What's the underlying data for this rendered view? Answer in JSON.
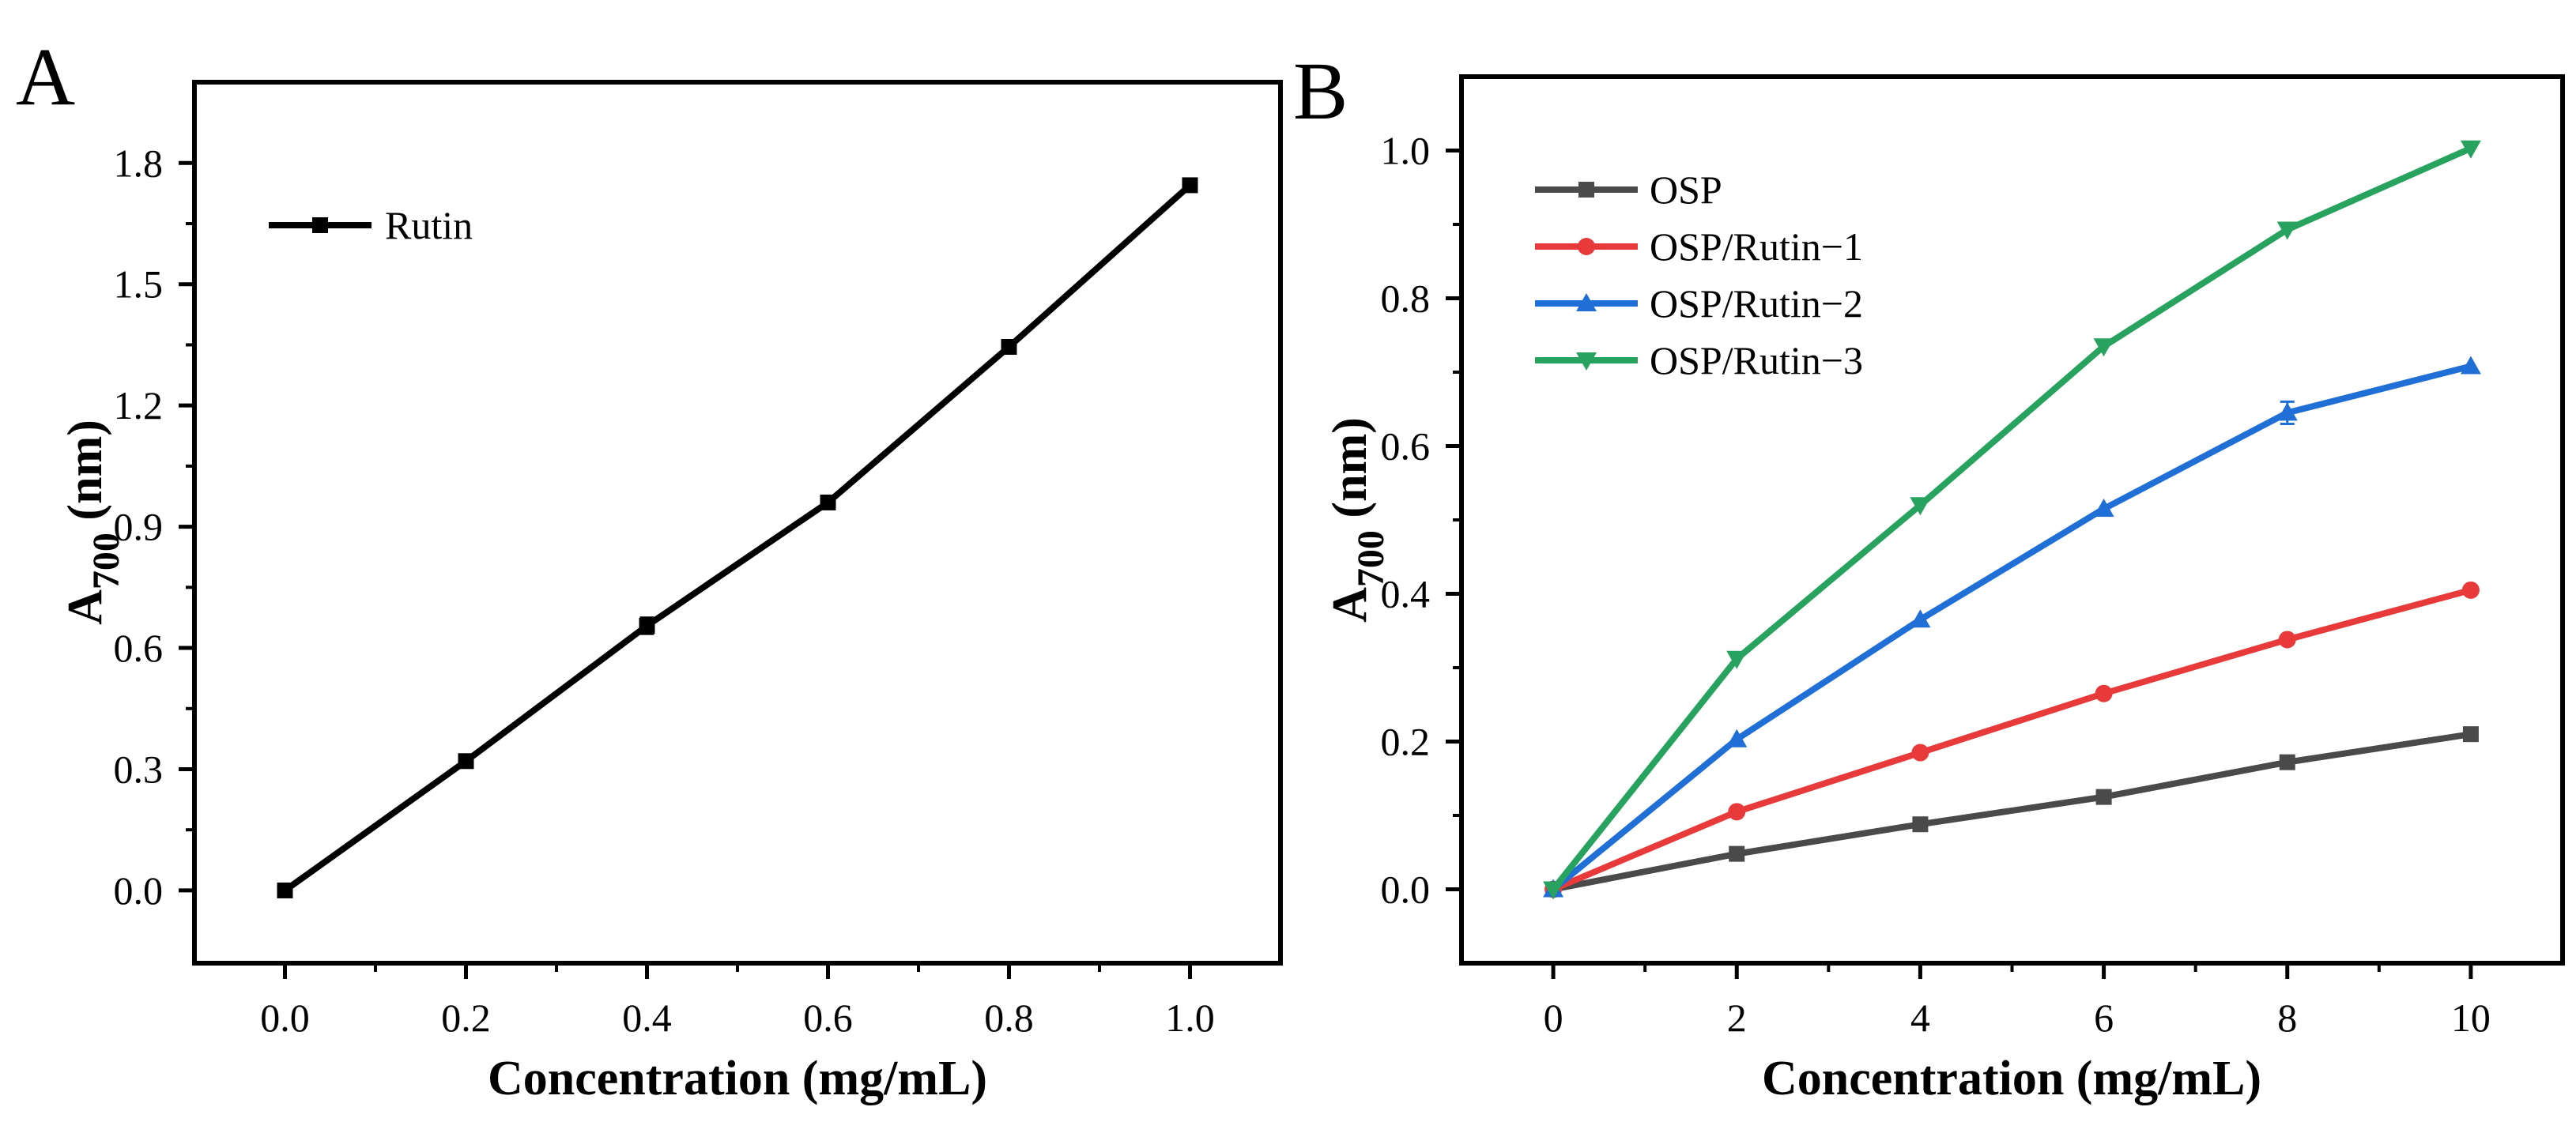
{
  "figure": {
    "panels": [
      {
        "letter": "A",
        "chart_data": {
          "type": "line",
          "xlabel": "Concentration (mg/mL)",
          "ylabel_main": "A",
          "ylabel_sub": "700",
          "ylabel_unit": " (nm)",
          "xlim": [
            -0.1,
            1.1
          ],
          "ylim": [
            -0.18,
            2.0
          ],
          "x_ticks": [
            0.0,
            0.2,
            0.4,
            0.6,
            0.8,
            1.0
          ],
          "x_tick_labels": [
            "0.0",
            "0.2",
            "0.4",
            "0.6",
            "0.8",
            "1.0"
          ],
          "y_ticks": [
            0.0,
            0.3,
            0.6,
            0.9,
            1.2,
            1.5,
            1.8
          ],
          "y_tick_labels": [
            "0.0",
            "0.3",
            "0.6",
            "0.9",
            "1.2",
            "1.5",
            "1.8"
          ],
          "legend_position": "top-left",
          "series": [
            {
              "name": "Rutin",
              "color": "#000000",
              "marker": "square",
              "x": [
                0.0,
                0.2,
                0.4,
                0.6,
                0.8,
                1.0
              ],
              "values": [
                0.0,
                0.32,
                0.655,
                0.96,
                1.345,
                1.745
              ],
              "errors": [
                0,
                0,
                0.02,
                0,
                0,
                0
              ]
            }
          ]
        }
      },
      {
        "letter": "B",
        "chart_data": {
          "type": "line",
          "xlabel": "Concentration (mg/mL)",
          "ylabel_main": "A",
          "ylabel_sub": "700",
          "ylabel_unit": " (nm)",
          "xlim": [
            -1,
            11
          ],
          "ylim": [
            -0.1,
            1.1
          ],
          "x_ticks": [
            0,
            2,
            4,
            6,
            8,
            10
          ],
          "x_tick_labels": [
            "0",
            "2",
            "4",
            "6",
            "8",
            "10"
          ],
          "y_ticks": [
            0.0,
            0.2,
            0.4,
            0.6,
            0.8,
            1.0
          ],
          "y_tick_labels": [
            "0.0",
            "0.2",
            "0.4",
            "0.6",
            "0.8",
            "1.0"
          ],
          "legend_position": "top-left",
          "series": [
            {
              "name": "OSP",
              "color": "#4a4a4a",
              "marker": "square",
              "x": [
                0,
                2,
                4,
                6,
                8,
                10
              ],
              "values": [
                0.0,
                0.048,
                0.088,
                0.125,
                0.172,
                0.21
              ],
              "errors": [
                0,
                0,
                0,
                0,
                0,
                0
              ]
            },
            {
              "name": "OSP/Rutin−1",
              "color": "#e83a3a",
              "marker": "circle",
              "x": [
                0,
                2,
                4,
                6,
                8,
                10
              ],
              "values": [
                0.0,
                0.105,
                0.185,
                0.265,
                0.338,
                0.405
              ],
              "errors": [
                0,
                0,
                0,
                0,
                0,
                0
              ]
            },
            {
              "name": "OSP/Rutin−2",
              "color": "#1f6fd6",
              "marker": "triangle-up",
              "x": [
                0,
                2,
                4,
                6,
                8,
                10
              ],
              "values": [
                0.0,
                0.203,
                0.365,
                0.515,
                0.645,
                0.708
              ],
              "errors": [
                0,
                0,
                0,
                0,
                0.015,
                0
              ]
            },
            {
              "name": "OSP/Rutin−3",
              "color": "#27a35f",
              "marker": "triangle-down",
              "x": [
                0,
                2,
                4,
                6,
                8,
                10
              ],
              "values": [
                0.0,
                0.312,
                0.52,
                0.735,
                0.893,
                1.003
              ],
              "errors": [
                0,
                0,
                0,
                0,
                0,
                0
              ]
            }
          ]
        }
      }
    ]
  }
}
